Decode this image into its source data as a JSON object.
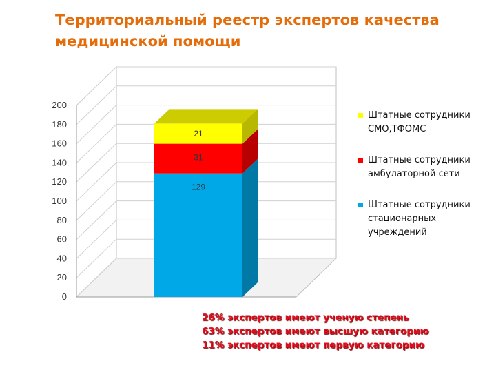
{
  "title": "Территориальный реестр экспертов качества медицинской помощи",
  "chart_data": {
    "type": "bar",
    "stacked": true,
    "three_d": true,
    "categories": [
      ""
    ],
    "series": [
      {
        "name": "Штатные сотрудники стационарных учреждений",
        "values": [
          129
        ],
        "color": "#00a8e8"
      },
      {
        "name": "Штатные сотрудники амбулаторной сети",
        "values": [
          31
        ],
        "color": "#ff0000"
      },
      {
        "name": "Штатные сотрудники СМО,ТФОМС",
        "values": [
          21
        ],
        "color": "#ffff00"
      }
    ],
    "data_labels": [
      "129",
      "31",
      "21"
    ],
    "y_ticks": [
      "0",
      "20",
      "40",
      "60",
      "80",
      "100",
      "120",
      "140",
      "160",
      "180",
      "200"
    ],
    "ylim": [
      0,
      200
    ],
    "grid": true,
    "legend_position": "right"
  },
  "legend": [
    {
      "label": "Штатные сотрудники\nСМО,ТФОМС",
      "color": "#ffff00"
    },
    {
      "label": "Штатные сотрудники\nамбулаторной сети",
      "color": "#ff0000"
    },
    {
      "label": "Штатные сотрудники\nстационарных\nучреждений",
      "color": "#00a8e8"
    }
  ],
  "notes": [
    "26% экспертов имеют ученую степень",
    "63% экспертов имеют высшую категорию",
    "11%  экспертов имеют первую категорию"
  ]
}
